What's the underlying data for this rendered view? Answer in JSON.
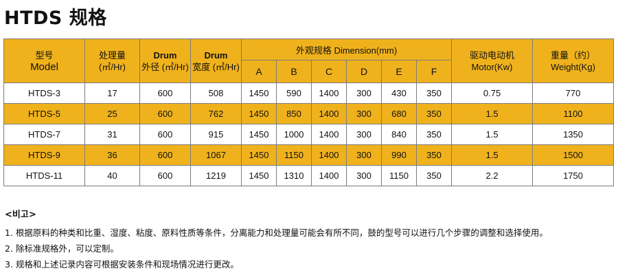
{
  "title": "HTDS 规格",
  "table": {
    "headers": {
      "model_cn": "型号",
      "model_en": "Model",
      "capacity_cn": "处理量",
      "capacity_unit": "(㎥/Hr)",
      "drum_outer_top": "Drum",
      "drum_outer_bottom": "外径 (㎥/Hr)",
      "drum_width_top": "Drum",
      "drum_width_bottom": "宽度 (㎥/Hr)",
      "dimension_group": "外观规格 Dimension(mm)",
      "dim_a": "A",
      "dim_b": "B",
      "dim_c": "C",
      "dim_d": "D",
      "dim_e": "E",
      "dim_f": "F",
      "motor_cn": "驱动电动机",
      "motor_en": "Motor(Kw)",
      "weight_cn": "重量（约）",
      "weight_en": "Weight(Kg)"
    },
    "rows": [
      [
        "HTDS-3",
        "17",
        "600",
        "508",
        "1450",
        "590",
        "1400",
        "300",
        "430",
        "350",
        "0.75",
        "770"
      ],
      [
        "HTDS-5",
        "25",
        "600",
        "762",
        "1450",
        "850",
        "1400",
        "300",
        "680",
        "350",
        "1.5",
        "1100"
      ],
      [
        "HTDS-7",
        "31",
        "600",
        "915",
        "1450",
        "1000",
        "1400",
        "300",
        "840",
        "350",
        "1.5",
        "1350"
      ],
      [
        "HTDS-9",
        "36",
        "600",
        "1067",
        "1450",
        "1150",
        "1400",
        "300",
        "990",
        "350",
        "1.5",
        "1500"
      ],
      [
        "HTDS-11",
        "40",
        "600",
        "1219",
        "1450",
        "1310",
        "1400",
        "300",
        "1150",
        "350",
        "2.2",
        "1750"
      ]
    ]
  },
  "notes": {
    "heading": "<비고>",
    "items": [
      "1. 根据原料的种类和比重、湿度、粘度、原料性质等条件，分离能力和处理量可能会有所不同，鼓的型号可以进行几个步骤的调整和选择使用。",
      "2. 除标准规格外，可以定制。",
      "3. 规格和上述记录内容可根据安装条件和现场情况进行更改。"
    ]
  },
  "colors": {
    "header_bg": "#f0b21c",
    "highlight_row_bg": "#f0b21c",
    "border": "#7a7a7a"
  }
}
